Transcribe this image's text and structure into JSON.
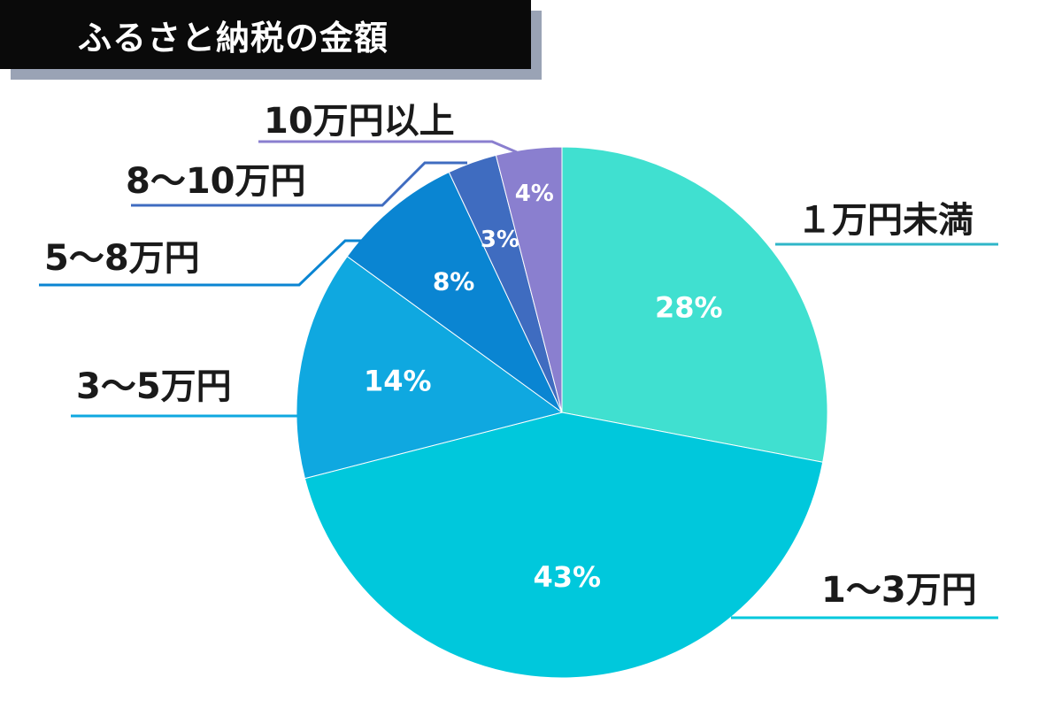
{
  "chart_data": {
    "type": "pie",
    "title": "ふるさと納税の金額",
    "categories": [
      "１万円未満",
      "1〜3万円",
      "3〜5万円",
      "5〜8万円",
      "8〜10万円",
      "10万円以上"
    ],
    "values": [
      28,
      43,
      14,
      8,
      3,
      4
    ],
    "value_labels": [
      "28%",
      "43%",
      "14%",
      "8%",
      "3%",
      "4%"
    ],
    "colors": [
      "#40e0d0",
      "#00c8dc",
      "#0fa8e0",
      "#0a85d2",
      "#3f6cc0",
      "#8a7fcf"
    ],
    "legend": "callout-labels"
  }
}
